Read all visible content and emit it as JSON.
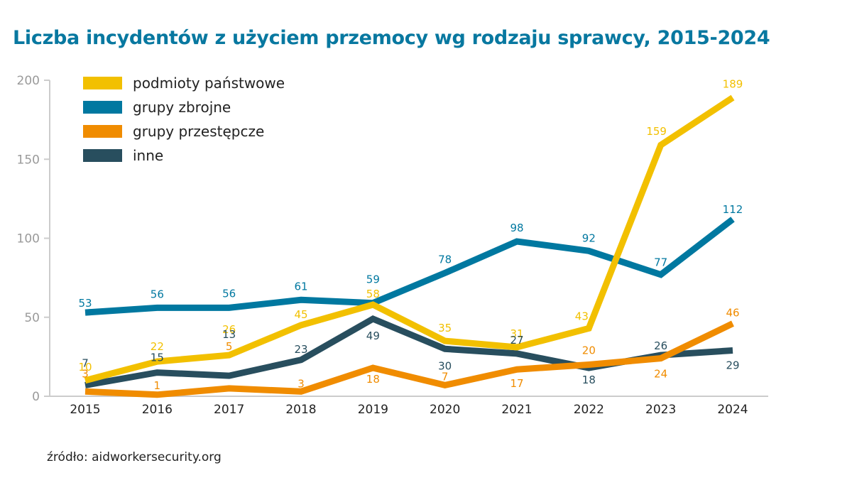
{
  "chart_data": {
    "type": "line",
    "title": "Liczba incydentów z użyciem przemocy wg rodzaju sprawcy, 2015-2024",
    "xlabel": "",
    "ylabel": "",
    "x": [
      "2015",
      "2016",
      "2017",
      "2018",
      "2019",
      "2020",
      "2021",
      "2022",
      "2023",
      "2024"
    ],
    "ylim": [
      0,
      200
    ],
    "yticks": [
      "0",
      "50",
      "100",
      "150",
      "200"
    ],
    "grid": false,
    "legend_position": "top-left",
    "series": [
      {
        "name": "podmioty państwowe",
        "color": "#f2c000",
        "values": [
          10,
          22,
          26,
          45,
          58,
          35,
          31,
          43,
          159,
          189
        ]
      },
      {
        "name": "grupy zbrojne",
        "color": "#0078a0",
        "values": [
          53,
          56,
          56,
          61,
          59,
          78,
          98,
          92,
          77,
          112
        ]
      },
      {
        "name": "grupy przestępcze",
        "color": "#f08c00",
        "values": [
          3,
          1,
          5,
          3,
          18,
          7,
          17,
          20,
          24,
          46
        ]
      },
      {
        "name": "inne",
        "color": "#284e5e",
        "values": [
          7,
          15,
          13,
          23,
          49,
          30,
          27,
          18,
          26,
          29
        ]
      }
    ],
    "source": "źródło: aidworkersecurity.org"
  }
}
